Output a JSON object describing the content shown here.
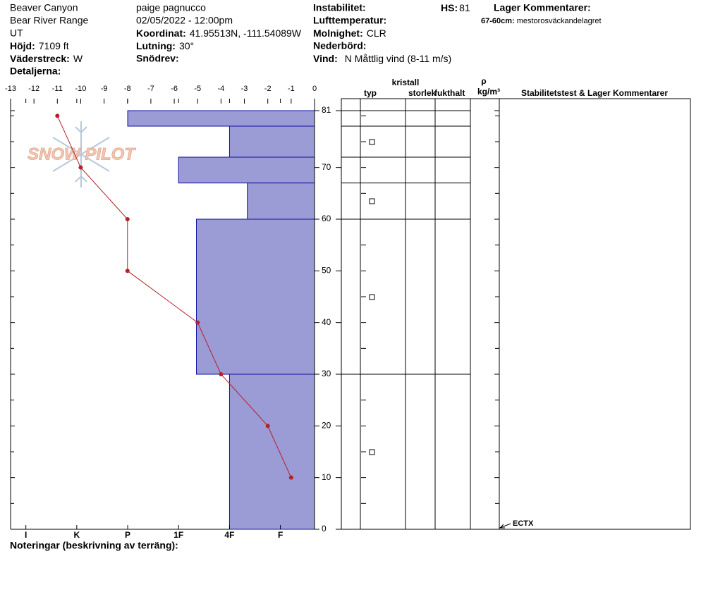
{
  "header": {
    "site": "Beaver Canyon",
    "range": "Bear River Range",
    "state": "UT",
    "elevation": {
      "label": "Höjd:",
      "value": "7109 ft"
    },
    "aspect": {
      "label": "Väderstreck:",
      "value": "W"
    },
    "details": {
      "label": "Detaljerna:"
    },
    "observer": "paige pagnucco",
    "datetime": "02/05/2022 - 12:00pm",
    "coordinates": {
      "label": "Koordinat:",
      "value": "41.95513N, -111.54089W"
    },
    "slope": {
      "label": "Lutning:",
      "value": "30°"
    },
    "wind_loading": {
      "label": "Snödrev:"
    },
    "instability": {
      "label": "Instabilitet:"
    },
    "air_temp": {
      "label": "Lufttemperatur:"
    },
    "sky": {
      "label": "Molnighet:",
      "value": "CLR"
    },
    "precip": {
      "label": "Nederbörd:"
    },
    "wind": {
      "label": "Vind:",
      "value": "N Måttlig vind (8-11 m/s)"
    },
    "hs": {
      "label": "HS:",
      "value": "81"
    },
    "layer_comments": {
      "title": "Lager Kommentarer:",
      "items": [
        {
          "label": "67-60cm:",
          "value": "mestorosväckandelagret"
        }
      ]
    }
  },
  "watermark": "SNOW PILOT",
  "table": {
    "crystal": "kristall",
    "type": "typ",
    "size": "storlek",
    "moisture": "fukthalt",
    "rho": "ρ",
    "density_unit": "kg/m³",
    "comments": "Stabilitetstest & Lager Kommentarer"
  },
  "notes": "Noteringar (beskrivning av terräng):",
  "chart_data": {
    "type": "snow_profile",
    "ylim": [
      0,
      81
    ],
    "yticks": [
      81,
      70,
      60,
      50,
      40,
      30,
      20,
      10,
      0
    ],
    "minor_yticks": [
      80,
      75,
      65,
      55,
      45,
      35,
      25,
      15,
      5
    ],
    "temperature": {
      "xlim": [
        -13,
        0
      ],
      "xticks": [
        -13,
        -12,
        -11,
        -10,
        -9,
        -8,
        -7,
        -6,
        -5,
        -4,
        -3,
        -2,
        -1,
        0
      ],
      "depths": [
        80,
        70,
        60,
        50,
        40,
        30,
        20,
        10
      ],
      "values": [
        -11,
        -10,
        -8,
        -8,
        -5,
        -4,
        -2,
        -1
      ],
      "color": "#b5202a"
    },
    "hardness": {
      "xlim": [
        6.3,
        0.33
      ],
      "xticks": [
        {
          "value": 6,
          "label": "I"
        },
        {
          "value": 5,
          "label": "K"
        },
        {
          "value": 4,
          "label": "P"
        },
        {
          "value": 3,
          "label": "1F"
        },
        {
          "value": 2,
          "label": "4F"
        },
        {
          "value": 1,
          "label": "F"
        }
      ],
      "color": "#9b9bd6",
      "layers": [
        {
          "top": 81,
          "bottom": 78,
          "hardness": 4
        },
        {
          "top": 78,
          "bottom": 72,
          "hardness": 2
        },
        {
          "top": 72,
          "bottom": 67,
          "hardness": 3
        },
        {
          "top": 67,
          "bottom": 60,
          "hardness": 1.65
        },
        {
          "top": 60,
          "bottom": 30,
          "hardness": 2.65
        },
        {
          "top": 30,
          "bottom": 0,
          "hardness": 2
        }
      ]
    },
    "tests": [
      {
        "depth": 0,
        "label": "ECTX"
      }
    ]
  }
}
